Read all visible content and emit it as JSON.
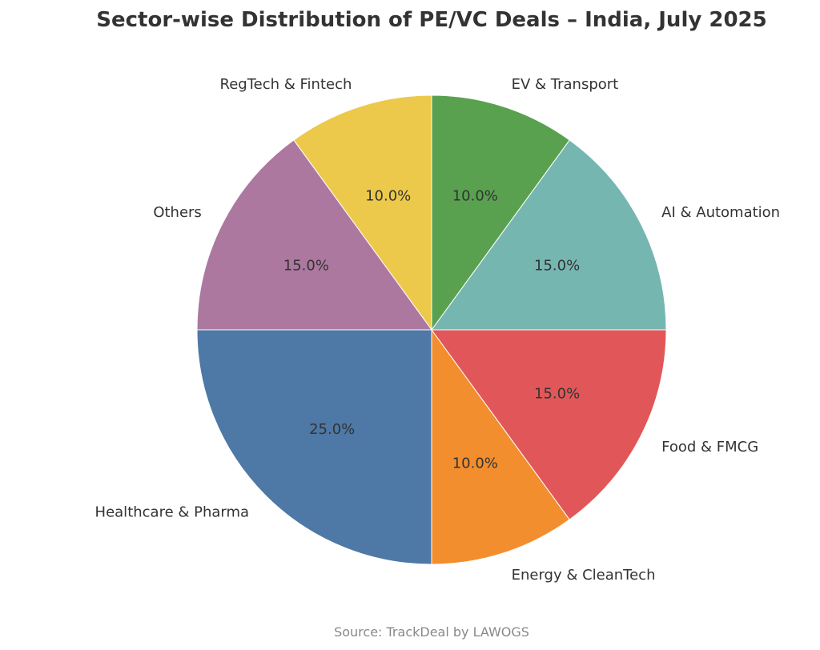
{
  "chart_data": {
    "type": "pie",
    "title": "Sector-wise Distribution of PE/VC Deals – India, July 2025",
    "source": "Source: TrackDeal by LAWOGS",
    "start_angle_deg": 90,
    "direction": "counterclockwise",
    "slices": [
      {
        "label": "RegTech & Fintech",
        "value": 10.0,
        "pct_label": "10.0%",
        "color": "#ecc94b"
      },
      {
        "label": "Others",
        "value": 15.0,
        "pct_label": "15.0%",
        "color": "#ac789f"
      },
      {
        "label": "Healthcare & Pharma",
        "value": 25.0,
        "pct_label": "25.0%",
        "color": "#4e78a5"
      },
      {
        "label": "Energy & CleanTech",
        "value": 10.0,
        "pct_label": "10.0%",
        "color": "#f28e2d"
      },
      {
        "label": "Food & FMCG",
        "value": 15.0,
        "pct_label": "15.0%",
        "color": "#e15759"
      },
      {
        "label": "AI & Automation",
        "value": 15.0,
        "pct_label": "15.0%",
        "color": "#76b6b1"
      },
      {
        "label": "EV & Transport",
        "value": 10.0,
        "pct_label": "10.0%",
        "color": "#59a14f"
      }
    ]
  }
}
